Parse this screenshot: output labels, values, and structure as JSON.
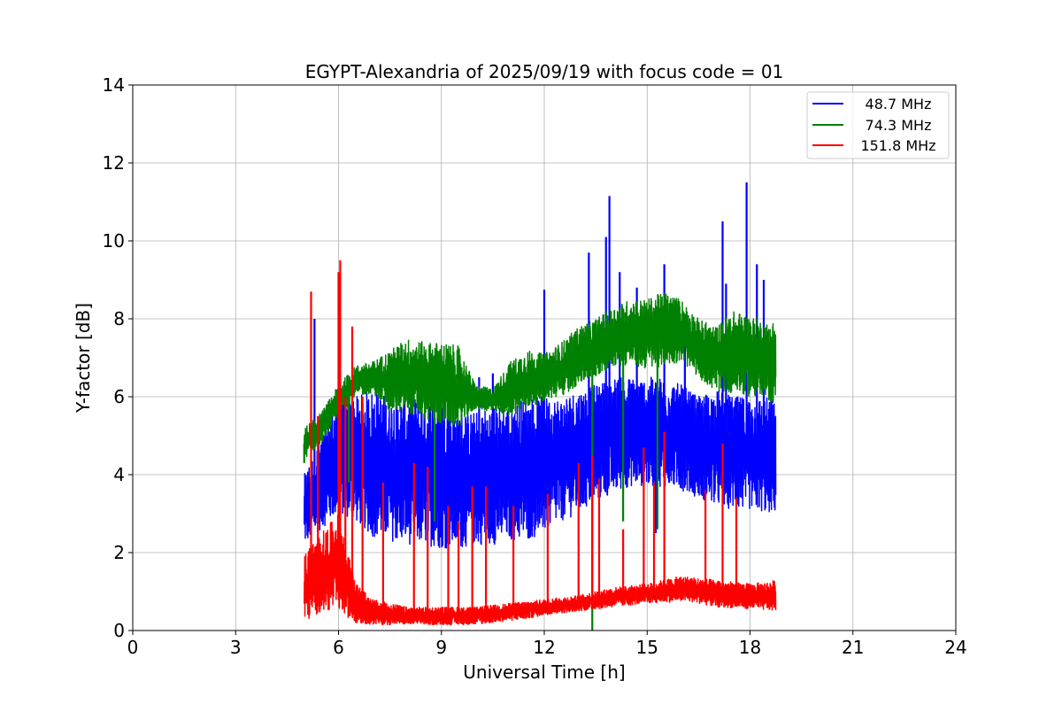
{
  "chart_data": {
    "type": "line",
    "title": "EGYPT-Alexandria of 2025/09/19 with focus code = 01",
    "xlabel": "Universal Time [h]",
    "ylabel": "Y-factor [dB]",
    "xlim": [
      0,
      24
    ],
    "ylim": [
      0,
      14
    ],
    "xticks": [
      "0",
      "3",
      "6",
      "9",
      "12",
      "15",
      "18",
      "21",
      "24"
    ],
    "yticks": [
      "0",
      "2",
      "4",
      "6",
      "8",
      "10",
      "12",
      "14"
    ],
    "grid": true,
    "legend_position": "top-right",
    "envelope_times_h": [
      5.0,
      5.5,
      6.0,
      6.5,
      7.0,
      7.5,
      8.0,
      8.5,
      9.0,
      9.5,
      10.0,
      10.5,
      11.0,
      11.5,
      12.0,
      12.5,
      13.0,
      13.5,
      14.0,
      14.5,
      15.0,
      15.5,
      16.0,
      16.5,
      17.0,
      17.5,
      18.0,
      18.5,
      18.75
    ],
    "series": [
      {
        "name": "48.7 MHz",
        "color": "#0000ff",
        "low": [
          2.2,
          2.6,
          3.0,
          2.8,
          2.4,
          2.3,
          2.2,
          2.2,
          2.1,
          2.1,
          2.2,
          2.2,
          2.3,
          2.3,
          2.5,
          2.8,
          3.0,
          3.3,
          3.5,
          3.7,
          3.7,
          3.7,
          3.6,
          3.4,
          3.2,
          3.1,
          3.1,
          3.0,
          3.0
        ],
        "high": [
          4.0,
          5.0,
          6.0,
          6.0,
          6.2,
          6.0,
          6.0,
          6.0,
          6.0,
          5.7,
          5.6,
          5.8,
          5.8,
          6.0,
          6.0,
          6.0,
          6.2,
          6.3,
          6.5,
          6.5,
          6.5,
          6.5,
          6.3,
          6.0,
          6.2,
          6.0,
          6.0,
          6.0,
          5.9
        ],
        "spikes": [
          [
            5.3,
            8.0
          ],
          [
            10.1,
            6.5
          ],
          [
            10.5,
            6.6
          ],
          [
            12.0,
            8.75
          ],
          [
            13.3,
            9.7
          ],
          [
            13.8,
            10.1
          ],
          [
            13.9,
            11.15
          ],
          [
            14.2,
            9.2
          ],
          [
            14.7,
            8.8
          ],
          [
            15.25,
            2.5
          ],
          [
            15.5,
            9.4
          ],
          [
            16.1,
            8.0
          ],
          [
            17.2,
            10.5
          ],
          [
            17.3,
            8.9
          ],
          [
            17.9,
            11.5
          ],
          [
            18.2,
            9.4
          ],
          [
            18.4,
            9.0
          ]
        ]
      },
      {
        "name": "74.3 MHz",
        "color": "#008000",
        "low": [
          4.4,
          4.8,
          5.5,
          6.0,
          6.1,
          5.6,
          5.6,
          5.4,
          5.3,
          5.2,
          5.7,
          5.6,
          5.5,
          5.7,
          5.9,
          6.0,
          6.3,
          6.5,
          6.8,
          6.8,
          6.7,
          6.8,
          6.9,
          6.5,
          6.1,
          6.1,
          6.0,
          5.9,
          5.8
        ],
        "high": [
          5.2,
          5.6,
          6.3,
          6.8,
          6.9,
          7.2,
          7.5,
          7.4,
          7.4,
          7.3,
          6.3,
          6.2,
          6.9,
          7.2,
          7.1,
          7.4,
          7.8,
          8.0,
          8.3,
          8.5,
          8.5,
          8.7,
          8.5,
          8.0,
          7.8,
          8.2,
          8.1,
          7.9,
          8.0
        ],
        "spikes": [
          [
            5.0,
            4.3
          ],
          [
            6.3,
            3.8
          ],
          [
            8.8,
            2.8
          ],
          [
            13.4,
            0.0
          ],
          [
            14.3,
            2.8
          ],
          [
            15.3,
            2.6
          ]
        ]
      },
      {
        "name": "151.8 MHz",
        "color": "#ff0000",
        "low": [
          0.2,
          0.5,
          0.5,
          0.2,
          0.15,
          0.15,
          0.15,
          0.15,
          0.15,
          0.15,
          0.15,
          0.2,
          0.25,
          0.3,
          0.4,
          0.45,
          0.5,
          0.55,
          0.6,
          0.65,
          0.7,
          0.72,
          0.75,
          0.7,
          0.6,
          0.58,
          0.55,
          0.52,
          0.5
        ],
        "high": [
          2.0,
          2.5,
          3.0,
          1.2,
          0.8,
          0.7,
          0.6,
          0.6,
          0.6,
          0.6,
          0.6,
          0.65,
          0.7,
          0.75,
          0.8,
          0.85,
          0.9,
          1.0,
          1.1,
          1.15,
          1.2,
          1.3,
          1.4,
          1.35,
          1.3,
          1.25,
          1.2,
          1.25,
          1.3
        ],
        "spikes": [
          [
            5.2,
            8.7
          ],
          [
            5.4,
            5.5
          ],
          [
            6.0,
            9.2
          ],
          [
            6.05,
            9.5
          ],
          [
            6.2,
            6.0
          ],
          [
            6.4,
            7.8
          ],
          [
            6.7,
            6.0
          ],
          [
            7.3,
            3.8
          ],
          [
            8.2,
            4.3
          ],
          [
            8.6,
            4.2
          ],
          [
            9.2,
            3.2
          ],
          [
            9.5,
            2.8
          ],
          [
            9.9,
            3.7
          ],
          [
            10.3,
            3.7
          ],
          [
            11.1,
            3.2
          ],
          [
            12.1,
            3.5
          ],
          [
            13.0,
            4.3
          ],
          [
            13.4,
            4.5
          ],
          [
            13.6,
            3.9
          ],
          [
            14.3,
            2.6
          ],
          [
            14.9,
            4.7
          ],
          [
            15.2,
            3.8
          ],
          [
            15.5,
            5.1
          ],
          [
            16.7,
            3.6
          ],
          [
            17.2,
            4.8
          ],
          [
            17.6,
            3.4
          ]
        ]
      }
    ]
  }
}
